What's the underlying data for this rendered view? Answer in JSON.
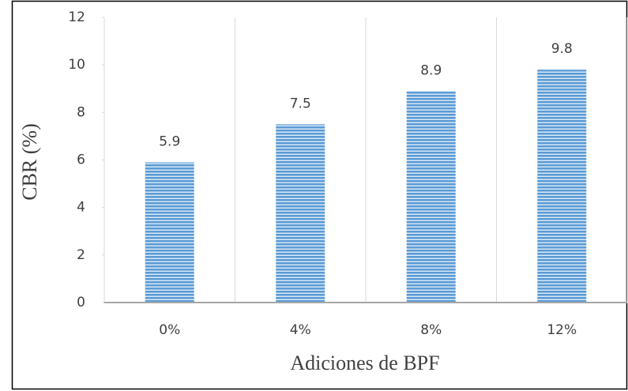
{
  "chart_data": {
    "type": "bar",
    "x_label": "Adiciones de BPF",
    "y_label": "CBR (%)",
    "categories": [
      "0%",
      "4%",
      "8%",
      "12%"
    ],
    "values": [
      5.9,
      7.5,
      8.9,
      9.8
    ],
    "color": "#5b9bd5",
    "ylim": [
      0,
      12
    ],
    "yticks": [
      0,
      2,
      4,
      6,
      8,
      10,
      12
    ]
  }
}
